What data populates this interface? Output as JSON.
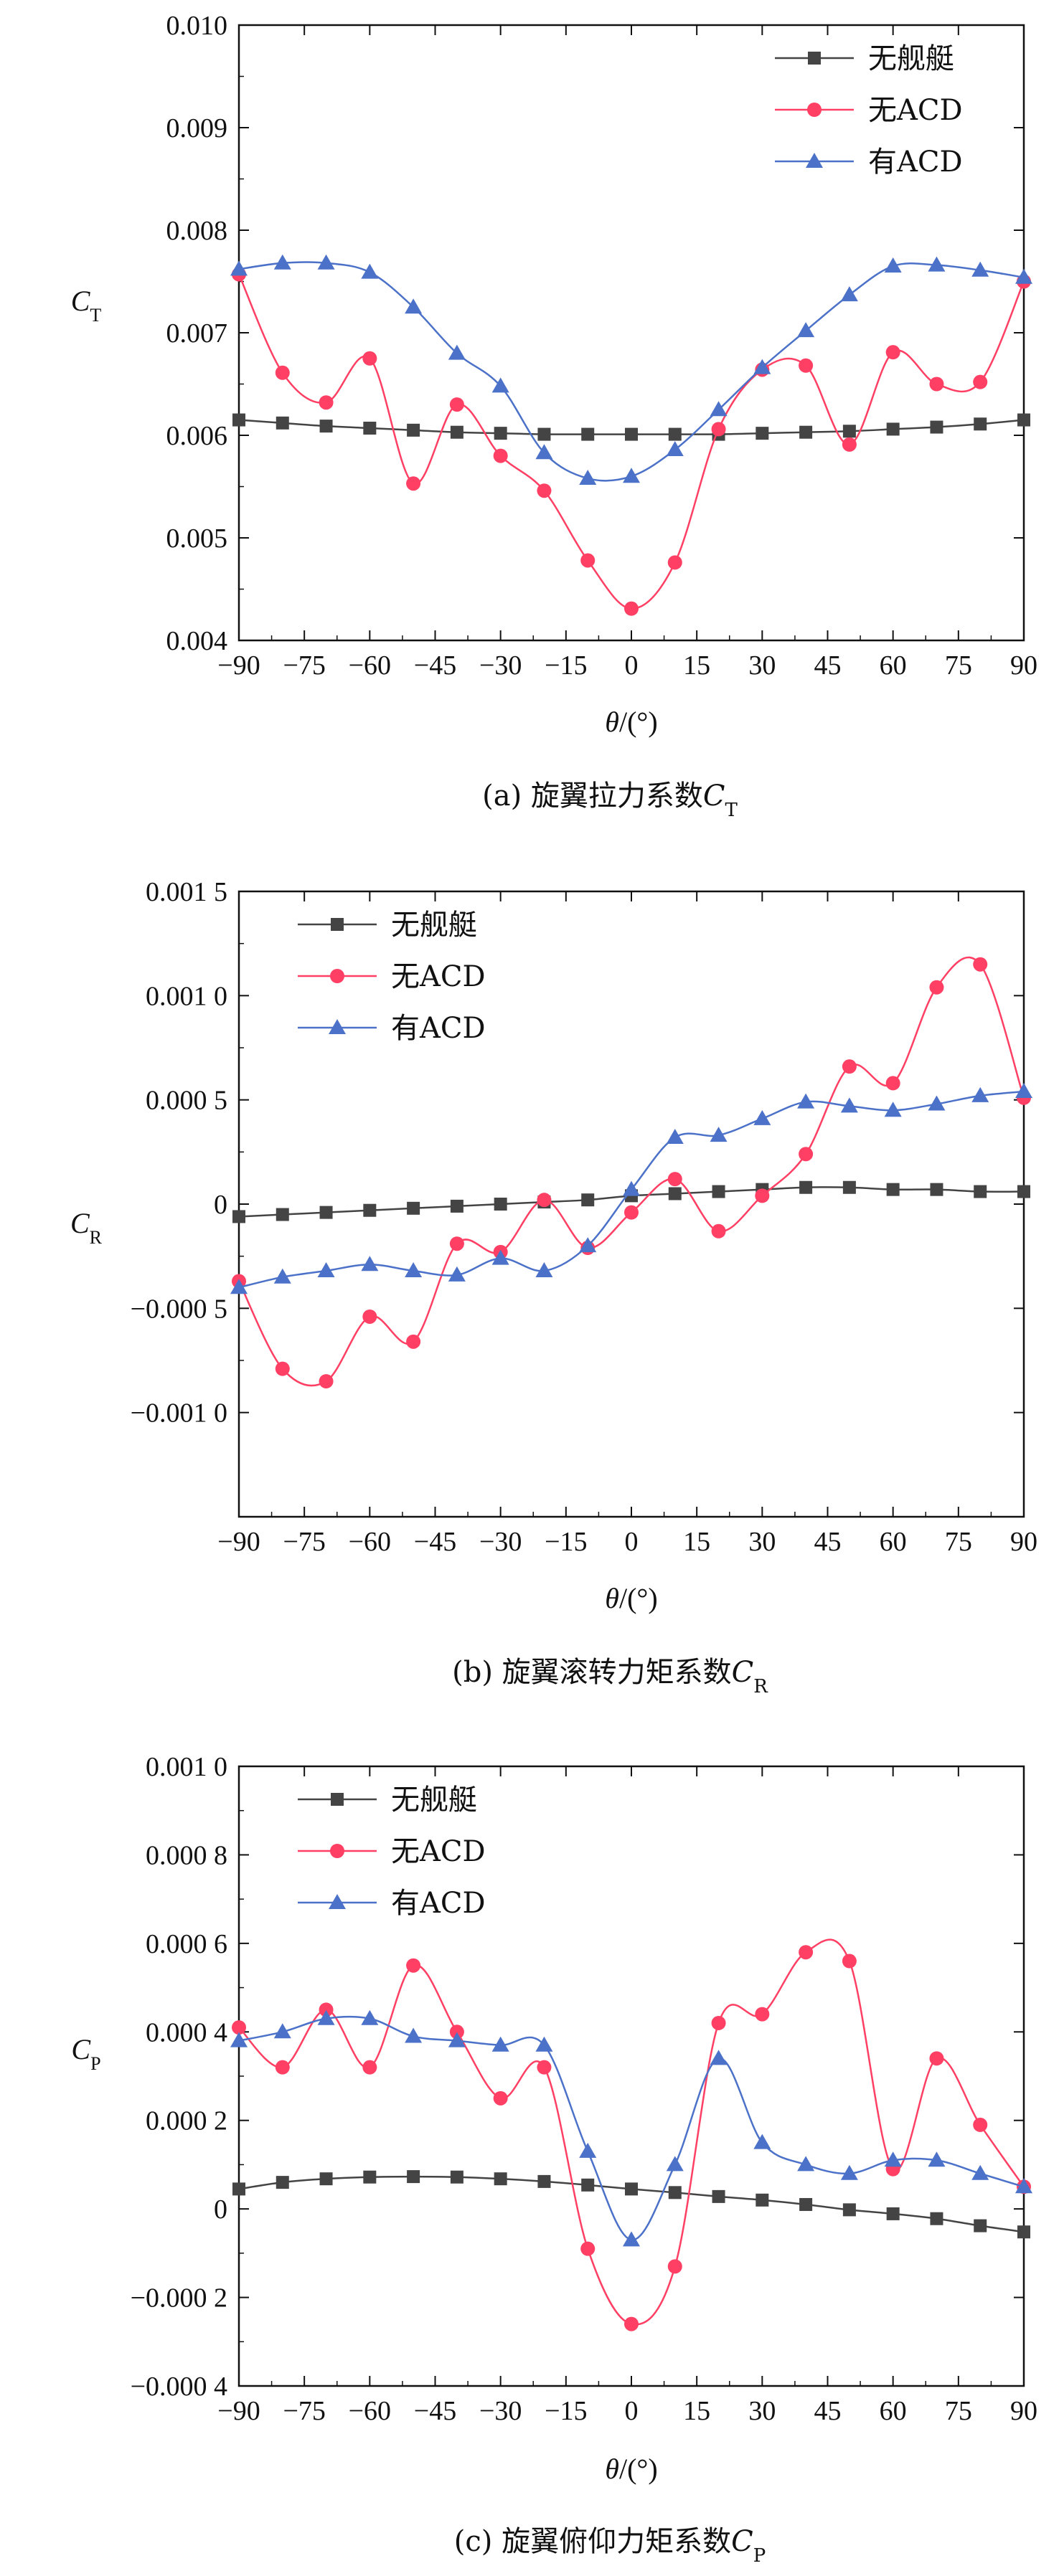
{
  "legend_labels": [
    "无舰艇",
    "无ACD",
    "有ACD"
  ],
  "colors": {
    "s1": "#444444",
    "s2": "#ff3f63",
    "s3": "#4b71c8",
    "axis": "#111111"
  },
  "chart_data": [
    {
      "type": "line",
      "caption_prefix": "(a) 旋翼拉力系数",
      "caption_var": "C",
      "caption_sub": "T",
      "ylabel_var": "C",
      "ylabel_sub": "T",
      "xlabel_var": "θ",
      "xlabel_unit": "/(°)",
      "xlim": [
        -90,
        90
      ],
      "ylim": [
        0.004,
        0.01
      ],
      "xticks": [
        -90,
        -75,
        -60,
        -45,
        -30,
        -15,
        0,
        15,
        30,
        45,
        60,
        75,
        90
      ],
      "yticks": [
        0.004,
        0.005,
        0.006,
        0.007,
        0.008,
        0.009,
        0.01
      ],
      "ytick_labels": [
        "0.004",
        "0.005",
        "0.006",
        "0.007",
        "0.008",
        "0.009",
        "0.010"
      ],
      "legend_position": "top-right",
      "x": [
        -90,
        -80,
        -70,
        -60,
        -50,
        -40,
        -30,
        -20,
        -10,
        0,
        10,
        20,
        30,
        40,
        50,
        60,
        70,
        80,
        90
      ],
      "series": [
        {
          "name": "无舰艇",
          "marker": "square",
          "values": [
            0.00615,
            0.00612,
            0.00609,
            0.00607,
            0.00605,
            0.00603,
            0.00602,
            0.00601,
            0.00601,
            0.00601,
            0.00601,
            0.00601,
            0.00602,
            0.00603,
            0.00604,
            0.00606,
            0.00608,
            0.00611,
            0.00615
          ]
        },
        {
          "name": "无ACD",
          "marker": "circle",
          "values": [
            0.00757,
            0.00661,
            0.00632,
            0.00675,
            0.00553,
            0.0063,
            0.0058,
            0.00546,
            0.00478,
            0.00431,
            0.00476,
            0.00606,
            0.00664,
            0.00668,
            0.00591,
            0.00681,
            0.0065,
            0.00652,
            0.0075
          ]
        },
        {
          "name": "有ACD",
          "marker": "triangle",
          "values": [
            0.00762,
            0.00768,
            0.00768,
            0.00759,
            0.00725,
            0.0068,
            0.00648,
            0.00583,
            0.00558,
            0.0056,
            0.00586,
            0.00625,
            0.00666,
            0.00702,
            0.00737,
            0.00765,
            0.00766,
            0.00761,
            0.00754
          ]
        }
      ]
    },
    {
      "type": "line",
      "caption_prefix": "(b) 旋翼滚转力矩系数",
      "caption_var": "C",
      "caption_sub": "R",
      "ylabel_var": "C",
      "ylabel_sub": "R",
      "xlabel_var": "θ",
      "xlabel_unit": "/(°)",
      "xlim": [
        -90,
        90
      ],
      "ylim": [
        -0.0015,
        0.0015
      ],
      "xticks": [
        -90,
        -75,
        -60,
        -45,
        -30,
        -15,
        0,
        15,
        30,
        45,
        60,
        75,
        90
      ],
      "yticks": [
        -0.001,
        -0.0005,
        0,
        0.0005,
        0.001,
        0.0015
      ],
      "ytick_labels": [
        "−0.001 0",
        "−0.000 5",
        "0",
        "0.000 5",
        "0.001 0",
        "0.001 5"
      ],
      "legend_position": "top-left",
      "x": [
        -90,
        -80,
        -70,
        -60,
        -50,
        -40,
        -30,
        -20,
        -10,
        0,
        10,
        20,
        30,
        40,
        50,
        60,
        70,
        80,
        90
      ],
      "series": [
        {
          "name": "无舰艇",
          "marker": "square",
          "values": [
            -6e-05,
            -5e-05,
            -4e-05,
            -3e-05,
            -2e-05,
            -1e-05,
            0.0,
            1e-05,
            2e-05,
            4e-05,
            5e-05,
            6e-05,
            7e-05,
            8e-05,
            8e-05,
            7e-05,
            7e-05,
            6e-05,
            6e-05
          ]
        },
        {
          "name": "无ACD",
          "marker": "circle",
          "values": [
            -0.00037,
            -0.00079,
            -0.00085,
            -0.00054,
            -0.00066,
            -0.00019,
            -0.00023,
            2e-05,
            -0.00021,
            -4e-05,
            0.00012,
            -0.00013,
            4e-05,
            0.00024,
            0.00066,
            0.00058,
            0.00104,
            0.00115,
            0.00051
          ]
        },
        {
          "name": "有ACD",
          "marker": "triangle",
          "values": [
            -0.0004,
            -0.00035,
            -0.00032,
            -0.00029,
            -0.00032,
            -0.00034,
            -0.00026,
            -0.00032,
            -0.0002,
            7e-05,
            0.00032,
            0.00033,
            0.00041,
            0.00049,
            0.00047,
            0.00045,
            0.00048,
            0.00052,
            0.00054
          ]
        }
      ]
    },
    {
      "type": "line",
      "caption_prefix": "(c) 旋翼俯仰力矩系数",
      "caption_var": "C",
      "caption_sub": "P",
      "ylabel_var": "C",
      "ylabel_sub": "P",
      "xlabel_var": "θ",
      "xlabel_unit": "/(°)",
      "xlim": [
        -90,
        90
      ],
      "ylim": [
        -0.0004,
        0.001
      ],
      "xticks": [
        -90,
        -75,
        -60,
        -45,
        -30,
        -15,
        0,
        15,
        30,
        45,
        60,
        75,
        90
      ],
      "yticks": [
        -0.0004,
        -0.0002,
        0,
        0.0002,
        0.0004,
        0.0006,
        0.0008,
        0.001
      ],
      "ytick_labels": [
        "−0.000 4",
        "−0.000 2",
        "0",
        "0.000 2",
        "0.000 4",
        "0.000 6",
        "0.000 8",
        "0.001 0"
      ],
      "legend_position": "top-left",
      "x": [
        -90,
        -80,
        -70,
        -60,
        -50,
        -40,
        -30,
        -20,
        -10,
        0,
        10,
        20,
        30,
        40,
        50,
        60,
        70,
        80,
        90
      ],
      "series": [
        {
          "name": "无舰艇",
          "marker": "square",
          "values": [
            4.5e-05,
            6e-05,
            6.8e-05,
            7.2e-05,
            7.3e-05,
            7.2e-05,
            6.8e-05,
            6.2e-05,
            5.4e-05,
            4.5e-05,
            3.7e-05,
            2.8e-05,
            2e-05,
            1e-05,
            -2e-06,
            -1.1e-05,
            -2.2e-05,
            -3.8e-05,
            -5.2e-05
          ]
        },
        {
          "name": "无ACD",
          "marker": "circle",
          "values": [
            0.00041,
            0.00032,
            0.00045,
            0.00032,
            0.00055,
            0.0004,
            0.00025,
            0.00032,
            -9e-05,
            -0.00026,
            -0.00013,
            0.00042,
            0.00044,
            0.00058,
            0.00056,
            9e-05,
            0.00034,
            0.00019,
            5e-05
          ]
        },
        {
          "name": "有ACD",
          "marker": "triangle",
          "values": [
            0.00038,
            0.0004,
            0.00043,
            0.00043,
            0.00039,
            0.00038,
            0.00037,
            0.00037,
            0.00013,
            -7e-05,
            0.0001,
            0.00034,
            0.00015,
            0.0001,
            8e-05,
            0.00011,
            0.00011,
            8e-05,
            5e-05
          ]
        }
      ]
    }
  ]
}
